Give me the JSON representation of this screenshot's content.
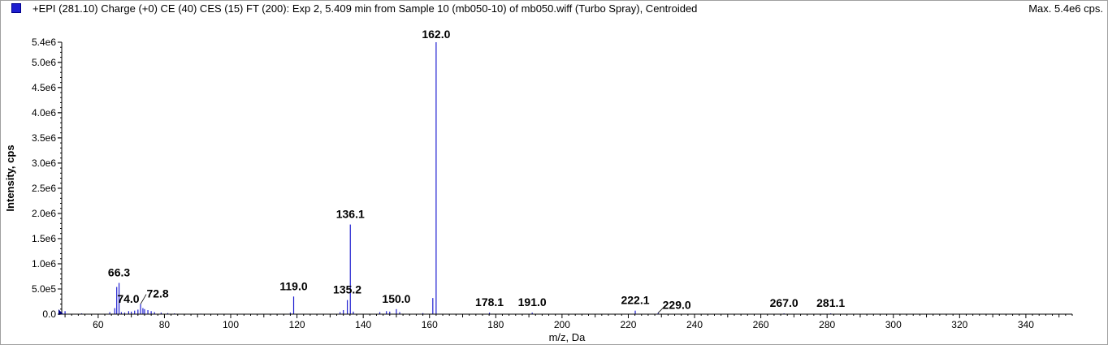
{
  "header": {
    "title": "+EPI (281.10) Charge (+0) CE (40) CES (15) FT (200): Exp 2, 5.409 min from Sample 10 (mb050-10) of mb050.wiff (Turbo Spray), Centroided",
    "max_label": "Max. 5.4e6 cps."
  },
  "colors": {
    "series": "#1f1fd0",
    "axis": "#000000",
    "frame": "#a0a0a0"
  },
  "chart_data": {
    "type": "bar",
    "title": "+EPI (281.10) Charge (+0) CE (40) CES (15) FT (200): Exp 2, 5.409 min from Sample 10 (mb050-10) of mb050.wiff (Turbo Spray), Centroided",
    "xlabel": "m/z, Da",
    "ylabel": "Intensity, cps",
    "xlim": [
      49,
      354
    ],
    "ylim": [
      0,
      5400000
    ],
    "x_ticks": [
      "60",
      "80",
      "100",
      "120",
      "140",
      "160",
      "180",
      "200",
      "220",
      "240",
      "260",
      "280",
      "300",
      "320",
      "340"
    ],
    "y_ticks": [
      "0.0",
      "5.0e5",
      "1.0e6",
      "1.5e6",
      "2.0e6",
      "2.5e6",
      "3.0e6",
      "3.5e6",
      "4.0e6",
      "4.5e6",
      "5.0e6",
      "5.4e6"
    ],
    "grid": false,
    "peaks": [
      {
        "mz": 50.0,
        "intensity": 60000
      },
      {
        "mz": 55.0,
        "intensity": 15000
      },
      {
        "mz": 63.5,
        "intensity": 40000
      },
      {
        "mz": 65.0,
        "intensity": 120000
      },
      {
        "mz": 65.6,
        "intensity": 540000
      },
      {
        "mz": 66.3,
        "intensity": 620000
      },
      {
        "mz": 67.0,
        "intensity": 40000
      },
      {
        "mz": 68.0,
        "intensity": 30000
      },
      {
        "mz": 69.2,
        "intensity": 60000
      },
      {
        "mz": 70.0,
        "intensity": 50000
      },
      {
        "mz": 71.0,
        "intensity": 70000
      },
      {
        "mz": 72.0,
        "intensity": 90000
      },
      {
        "mz": 72.8,
        "intensity": 200000
      },
      {
        "mz": 73.5,
        "intensity": 120000
      },
      {
        "mz": 74.0,
        "intensity": 100000
      },
      {
        "mz": 75.0,
        "intensity": 80000
      },
      {
        "mz": 76.0,
        "intensity": 60000
      },
      {
        "mz": 77.0,
        "intensity": 40000
      },
      {
        "mz": 79.0,
        "intensity": 30000
      },
      {
        "mz": 81.0,
        "intensity": 20000
      },
      {
        "mz": 83.0,
        "intensity": 15000
      },
      {
        "mz": 91.0,
        "intensity": 10000
      },
      {
        "mz": 118.0,
        "intensity": 30000
      },
      {
        "mz": 119.0,
        "intensity": 350000
      },
      {
        "mz": 133.0,
        "intensity": 40000
      },
      {
        "mz": 134.0,
        "intensity": 80000
      },
      {
        "mz": 135.2,
        "intensity": 280000
      },
      {
        "mz": 136.1,
        "intensity": 1780000
      },
      {
        "mz": 137.0,
        "intensity": 50000
      },
      {
        "mz": 145.0,
        "intensity": 40000
      },
      {
        "mz": 147.0,
        "intensity": 60000
      },
      {
        "mz": 148.0,
        "intensity": 50000
      },
      {
        "mz": 150.0,
        "intensity": 100000
      },
      {
        "mz": 151.0,
        "intensity": 40000
      },
      {
        "mz": 158.0,
        "intensity": 20000
      },
      {
        "mz": 161.0,
        "intensity": 320000
      },
      {
        "mz": 162.0,
        "intensity": 5400000
      },
      {
        "mz": 178.1,
        "intensity": 30000
      },
      {
        "mz": 191.0,
        "intensity": 30000
      },
      {
        "mz": 222.1,
        "intensity": 70000
      },
      {
        "mz": 229.0,
        "intensity": 25000
      },
      {
        "mz": 267.0,
        "intensity": 15000
      },
      {
        "mz": 281.1,
        "intensity": 15000
      }
    ],
    "annotations": [
      {
        "label": "66.3",
        "mz": 66.3,
        "intensity": 620000
      },
      {
        "label": "74.0",
        "mz": 74.0,
        "intensity": 100000
      },
      {
        "label": "72.8",
        "mz": 72.8,
        "intensity": 200000
      },
      {
        "label": "119.0",
        "mz": 119.0,
        "intensity": 350000
      },
      {
        "label": "135.2",
        "mz": 135.2,
        "intensity": 280000
      },
      {
        "label": "136.1",
        "mz": 136.1,
        "intensity": 1780000
      },
      {
        "label": "150.0",
        "mz": 150.0,
        "intensity": 100000
      },
      {
        "label": "162.0",
        "mz": 162.0,
        "intensity": 5400000
      },
      {
        "label": "178.1",
        "mz": 178.1,
        "intensity": 30000
      },
      {
        "label": "191.0",
        "mz": 191.0,
        "intensity": 30000
      },
      {
        "label": "222.1",
        "mz": 222.1,
        "intensity": 70000
      },
      {
        "label": "229.0",
        "mz": 229.0,
        "intensity": 25000
      },
      {
        "label": "267.0",
        "mz": 267.0,
        "intensity": 15000
      },
      {
        "label": "281.1",
        "mz": 281.1,
        "intensity": 15000
      }
    ]
  }
}
